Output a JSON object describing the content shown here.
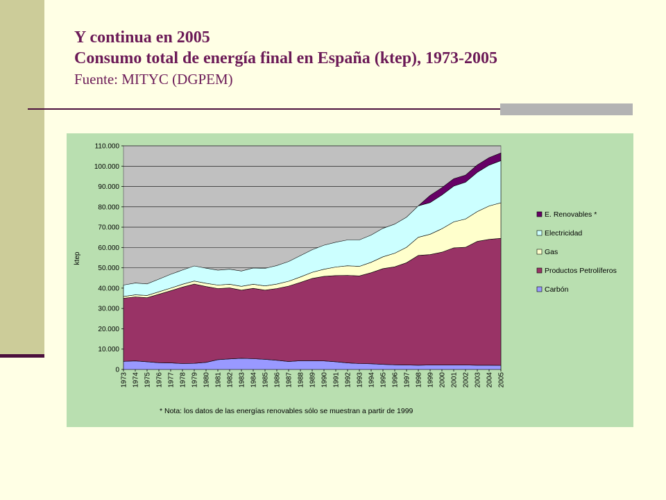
{
  "slide": {
    "title_line1": "Y continua en 2005",
    "title_line2": "Consumo total de energía final en España (ktep), 1973-2005",
    "title_line3": "Fuente: MITYC (DGPEM)"
  },
  "colors": {
    "background": "#FFFFE5",
    "accent": "#6B1A57",
    "panel": "#B9DFB0",
    "plot_bg": "#C0C0C0"
  },
  "chart_data": {
    "type": "area",
    "stacked": true,
    "ylabel": "ktep",
    "xlabel": "",
    "ylim": [
      0,
      110000
    ],
    "yticks": [
      0,
      10000,
      20000,
      30000,
      40000,
      50000,
      60000,
      70000,
      80000,
      90000,
      100000,
      110000
    ],
    "ytick_labels": [
      "0",
      "10.000",
      "20.000",
      "30.000",
      "40.000",
      "50.000",
      "60.000",
      "70.000",
      "80.000",
      "90.000",
      "100.000",
      "110.000"
    ],
    "grid": true,
    "legend_position": "right",
    "note": "* Nota: los datos de las energías renovables sólo se muestran a partir de 1999",
    "x": [
      "1973",
      "1974",
      "1975",
      "1976",
      "1977",
      "1978",
      "1979",
      "1980",
      "1981",
      "1982",
      "1983",
      "1984",
      "1985",
      "1986",
      "1987",
      "1988",
      "1989",
      "1990",
      "1991",
      "1992",
      "1993",
      "1994",
      "1995",
      "1996",
      "1997",
      "1998",
      "1999",
      "2000",
      "2001",
      "2002",
      "2003",
      "2004",
      "2005"
    ],
    "series": [
      {
        "name": "Carbón",
        "color": "#9999FF",
        "values": [
          4000,
          4200,
          3800,
          3300,
          3200,
          2900,
          3000,
          3500,
          4800,
          5200,
          5500,
          5300,
          5000,
          4500,
          3900,
          4300,
          4300,
          4200,
          3800,
          3200,
          2900,
          2800,
          2500,
          2300,
          2200,
          2100,
          2200,
          2200,
          2200,
          2200,
          2100,
          2100,
          2000
        ]
      },
      {
        "name": "Productos Petrolíferos",
        "color": "#993366",
        "values": [
          31000,
          31500,
          31500,
          33700,
          35500,
          37600,
          39000,
          37300,
          35000,
          34900,
          33500,
          34600,
          34000,
          35300,
          37100,
          38500,
          40500,
          41600,
          42400,
          43100,
          43100,
          44800,
          47100,
          48200,
          50300,
          54000,
          54300,
          55500,
          57600,
          57900,
          60900,
          61900,
          62500
        ]
      },
      {
        "name": "Gas",
        "color": "#FFFFCC",
        "values": [
          900,
          1000,
          1100,
          1200,
          1300,
          1400,
          1500,
          1600,
          1700,
          1800,
          1900,
          2000,
          2100,
          2200,
          2400,
          2700,
          3000,
          3500,
          4200,
          4700,
          4700,
          5100,
          5800,
          6700,
          7600,
          8900,
          10000,
          11500,
          12800,
          13900,
          14700,
          16400,
          17500
        ]
      },
      {
        "name": "Electricidad",
        "color": "#CCFFFF",
        "values": [
          5600,
          5800,
          5700,
          6200,
          6800,
          7000,
          7400,
          7400,
          7300,
          7400,
          7500,
          8000,
          8600,
          9100,
          9700,
          10500,
          11100,
          11800,
          12200,
          12700,
          13000,
          13400,
          14000,
          14300,
          14800,
          15500,
          15600,
          16600,
          17600,
          18100,
          19300,
          20100,
          20700
        ]
      },
      {
        "name": "E. Renovables *",
        "color": "#660066",
        "values": [
          0,
          0,
          0,
          0,
          0,
          0,
          0,
          0,
          0,
          0,
          0,
          0,
          0,
          0,
          0,
          0,
          0,
          0,
          0,
          0,
          0,
          0,
          0,
          0,
          0,
          0,
          3500,
          3600,
          3600,
          3500,
          3600,
          3700,
          3800
        ]
      }
    ]
  }
}
